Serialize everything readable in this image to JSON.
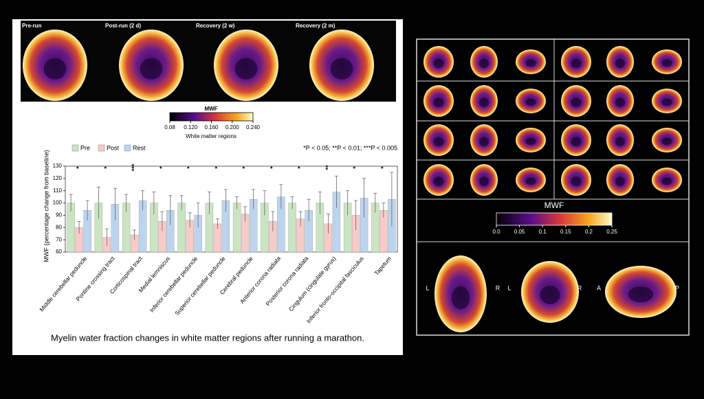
{
  "chart_data": {
    "type": "bar",
    "y_label": "MWF (percentage change from baseline)",
    "note": "*P < 0.05; **P < 0.01; ***P < 0.005",
    "categories": [
      "Middle cerebellar peduncle",
      "Pontine crossing tract",
      "Corticospinal tract",
      "Medial lemniscus",
      "Inferior cerebellar peduncle",
      "Superior cerebellar peduncle",
      "Cerebral peduncle",
      "Anterior corona radiata",
      "Posterior corona radiata",
      "Cingulum (cingulate gyrus)",
      "Inferior fronto-occipital fasciculus",
      "Tapetum"
    ],
    "series": [
      {
        "name": "Pre",
        "color": "#cbe5c3",
        "values": [
          100,
          100,
          100,
          100,
          100,
          100,
          100,
          100,
          100,
          100,
          100,
          100
        ],
        "errors": [
          7,
          13,
          7,
          9,
          6,
          9,
          5,
          10,
          5,
          9,
          10,
          8
        ]
      },
      {
        "name": "Post",
        "color": "#f6cbc8",
        "values": [
          80,
          72,
          74,
          85,
          86,
          83,
          91,
          85,
          87,
          83,
          90,
          94
        ],
        "errors": [
          5,
          7,
          4,
          8,
          6,
          4,
          6,
          8,
          6,
          8,
          12,
          6
        ]
      },
      {
        "name": "Rest",
        "color": "#bdd4ee",
        "values": [
          94,
          99,
          102,
          94,
          90,
          102,
          103,
          105,
          94,
          109,
          104,
          103
        ],
        "errors": [
          8,
          13,
          8,
          12,
          10,
          9,
          8,
          10,
          9,
          13,
          16,
          22
        ]
      }
    ],
    "annotations": [
      "*",
      "*",
      "***",
      "*",
      "*",
      "*",
      "*",
      "*",
      "*",
      "**",
      "*",
      "*"
    ],
    "ylim": [
      60,
      130
    ],
    "yticks": [
      60,
      70,
      80,
      90,
      100,
      110,
      120,
      130
    ],
    "grid": false,
    "legend": "top-left"
  },
  "scans": {
    "panels": [
      "Pre-run",
      "Post-run (2 d)",
      "Recovery (2 w)",
      "Recovery (2 m)"
    ],
    "colorbar": {
      "title": "MWF",
      "ticks": [
        0.08,
        {
          "value": 0.12,
          "label": "0.120"
        },
        {
          "value": 0.16,
          "label": "0.160"
        },
        {
          "value": 0.2,
          "label": "0.200"
        },
        {
          "value": 0.24,
          "label": "0.240"
        }
      ],
      "caption": "White matter regions"
    }
  },
  "caption": "Myelin water fraction changes in white matter regions after running a marathon.",
  "right": {
    "colorbar": {
      "title": "MWF",
      "ticks": [
        {
          "value": 0,
          "label": "0.0"
        },
        0.05,
        0.1,
        0.15,
        0.2,
        0.25
      ]
    },
    "orientation": [
      "L",
      "R",
      "L",
      "R",
      "A",
      "P"
    ]
  }
}
